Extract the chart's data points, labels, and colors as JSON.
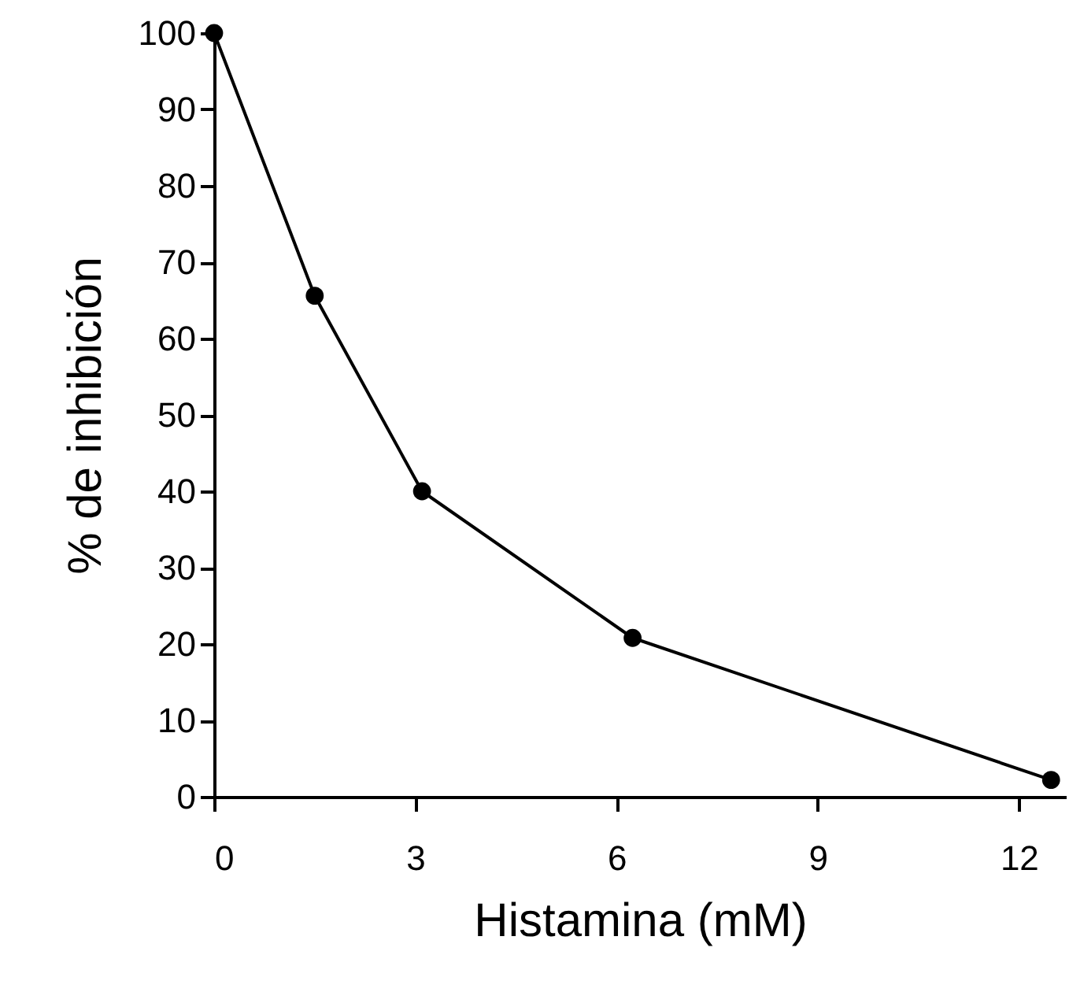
{
  "chart_data": {
    "type": "line",
    "xlabel": "Histamina (mM)",
    "ylabel": "% de inhibición",
    "x": [
      0,
      1.5,
      3.1,
      6.24,
      12.48
    ],
    "series": [
      {
        "color": "#000000",
        "values": [
          100,
          65.6,
          40,
          20.8,
          2.2
        ]
      }
    ],
    "xlim": [
      0,
      12.7
    ],
    "xticks": [
      0,
      3,
      6,
      9,
      12
    ],
    "ylim": [
      0,
      100
    ],
    "yticks": [
      0,
      10,
      20,
      30,
      40,
      50,
      60,
      70,
      80,
      90,
      100
    ],
    "grid": false,
    "legend": false,
    "marker": "circle",
    "line_style": "solid"
  }
}
